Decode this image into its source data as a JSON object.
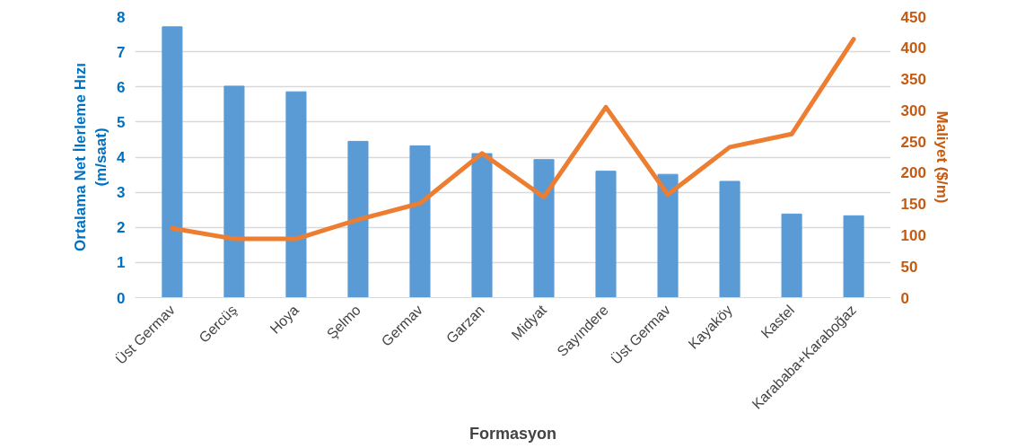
{
  "chart_data": {
    "type": "bar",
    "xlabel": "Formasyon",
    "ylabel": "Ortalama Net İlerleme Hızı\n(m/saat)",
    "y2label": "Maliyet ($/m)",
    "categories": [
      "Üst Germav",
      "Gercüş",
      "Hoya",
      "Şelmo",
      "Germav",
      "Garzan",
      "Midyat",
      "Sayındere",
      "Üst Germav",
      "Kayaköy",
      "Kastel",
      "Karababa+Karaboğaz"
    ],
    "series": [
      {
        "color": "#5b9bd5",
        "values": [
          7.71,
          6.02,
          5.86,
          4.45,
          4.32,
          4.1,
          3.93,
          3.6,
          3.51,
          3.31,
          2.38,
          2.33
        ]
      },
      {
        "type": "line",
        "axis": "y2",
        "color": "#ed7d31",
        "values": [
          111,
          94,
          94,
          125,
          151,
          231,
          161,
          305,
          165,
          241,
          262,
          414
        ]
      }
    ],
    "ylim": [
      0,
      8
    ],
    "yticks": [
      0,
      1,
      2,
      3,
      4,
      5,
      6,
      7,
      8
    ],
    "y2lim": [
      0,
      450
    ],
    "y2ticks": [
      0,
      50,
      100,
      150,
      200,
      250,
      300,
      350,
      400,
      450
    ],
    "grid": "y",
    "marker": "none",
    "line_style": "solid"
  }
}
